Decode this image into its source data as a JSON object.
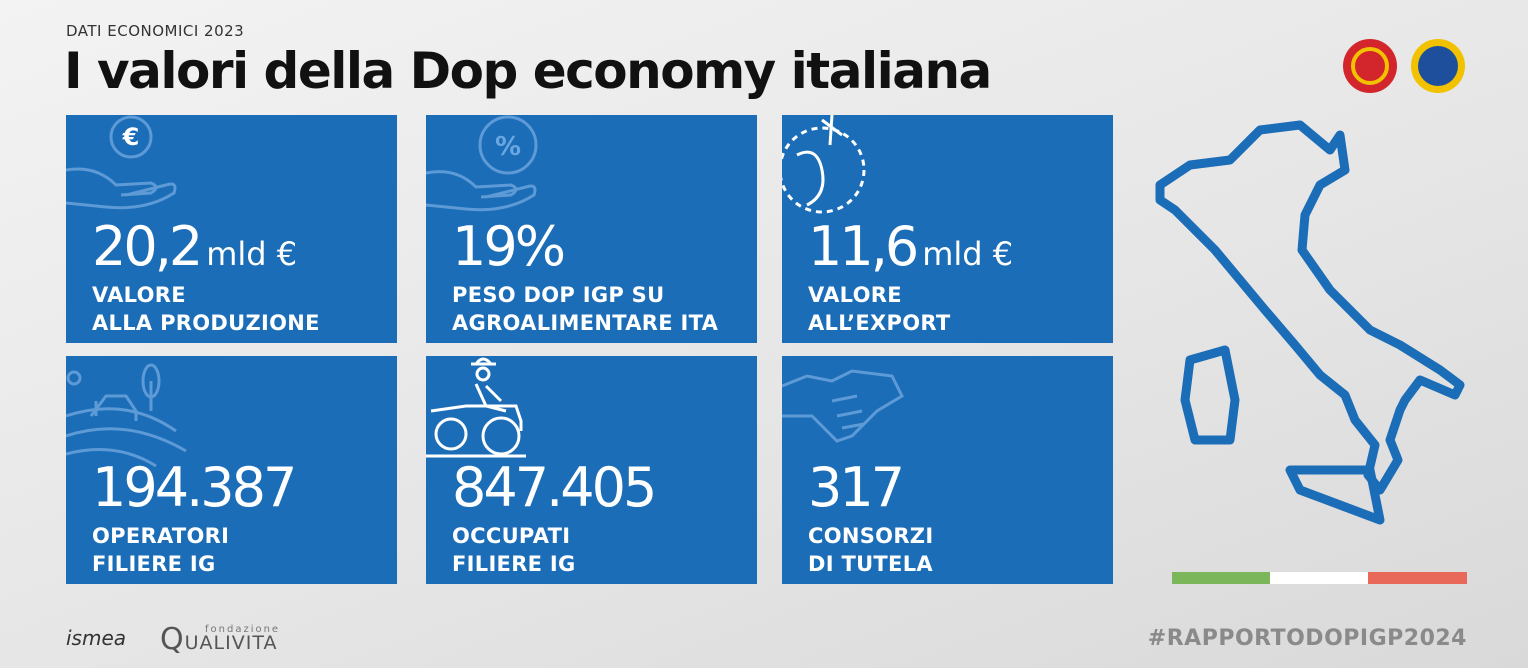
{
  "header": {
    "eyebrow": "DATI ECONOMICI 2023",
    "title": "I valori della Dop economy italiana"
  },
  "tiles": [
    {
      "icon_text": "€",
      "number": "20,2",
      "unit": "mld €",
      "lines": [
        "VALORE",
        "ALLA PRODUZIONE"
      ]
    },
    {
      "icon_text": "%",
      "number": "19%",
      "lines": [
        "PESO DOP IGP SU",
        "AGROALIMENTARE ITA"
      ]
    },
    {
      "number": "11,6",
      "unit": "mld €",
      "lines": [
        "VALORE",
        "ALL’EXPORT"
      ]
    },
    {
      "number": "194.387",
      "lines": [
        "OPERATORI",
        "FILIERE IG"
      ]
    },
    {
      "number": "847.405",
      "lines": [
        "OCCUPATI",
        "FILIERE IG"
      ]
    },
    {
      "number": "317",
      "lines": [
        "CONSORZI",
        "DI TUTELA"
      ]
    }
  ],
  "footer": {
    "logo_1": "ismea",
    "logo_2_small": "fondazione",
    "logo_2_initial": "Q",
    "logo_2_rest": "UALIVITA",
    "hashtag": "#RAPPORTODOPIGP2024"
  }
}
